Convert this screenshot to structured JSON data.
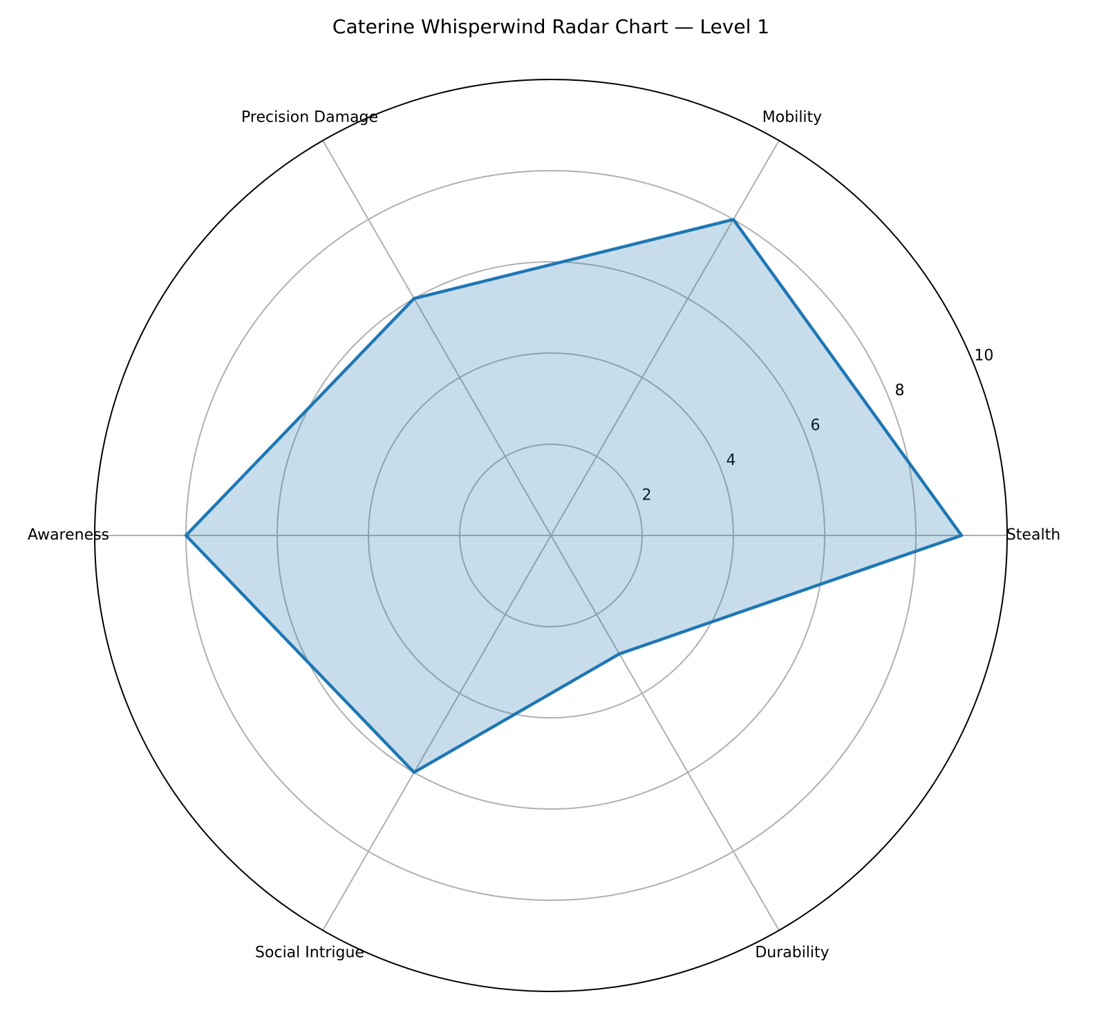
{
  "chart_data": {
    "type": "radar",
    "title": "Caterine Whisperwind Radar Chart — Level 1",
    "categories": [
      "Stealth",
      "Mobility",
      "Precision Damage",
      "Awareness",
      "Social Intrigue",
      "Durability"
    ],
    "values": [
      9,
      8,
      6,
      8,
      6,
      3
    ],
    "color": "#1f77b4",
    "ylim": [
      0,
      10
    ],
    "yticks": [
      2,
      4,
      6,
      8,
      10
    ],
    "grid": true
  }
}
